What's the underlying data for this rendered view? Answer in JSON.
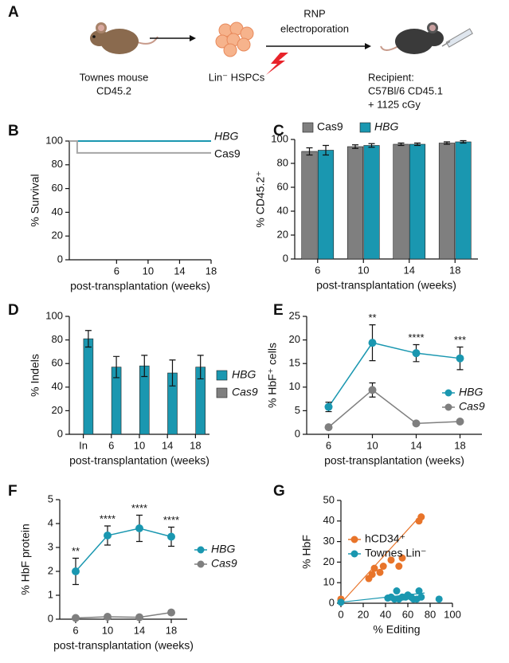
{
  "diagram": {
    "panel": "A",
    "donor": [
      "Townes mouse",
      "CD45.2"
    ],
    "cells": "Lin⁻ HSPCs",
    "step": [
      "RNP",
      "electroporation"
    ],
    "recipient": [
      "Recipient:",
      "C57Bl/6 CD45.1",
      "+ 1125 cGy"
    ]
  },
  "chart_data": [
    {
      "panel": "B",
      "type": "line",
      "step": true,
      "ylabel": "% Survival",
      "xlabel": "post-transplantation (weeks)",
      "x": [
        0,
        1,
        18
      ],
      "xlim": [
        0,
        18
      ],
      "xticks": [
        6,
        10,
        14,
        18
      ],
      "ylim": [
        0,
        100
      ],
      "yticks": [
        0,
        20,
        40,
        60,
        80,
        100
      ],
      "legend": "line-end",
      "series": [
        {
          "name": "HBG",
          "italic": true,
          "color": "#1a97b0",
          "values": [
            100,
            100,
            100
          ]
        },
        {
          "name": "Cas9",
          "italic": false,
          "color": "#a6a6a6",
          "values": [
            100,
            90,
            90
          ]
        }
      ]
    },
    {
      "panel": "C",
      "type": "bar",
      "ylabel": "% CD45.2⁺",
      "xlabel": "post-transplantation (weeks)",
      "categories": [
        "6",
        "10",
        "14",
        "18"
      ],
      "ylim": [
        0,
        100
      ],
      "yticks": [
        0,
        20,
        40,
        60,
        80,
        100
      ],
      "legend": "top",
      "series": [
        {
          "name": "Cas9",
          "italic": false,
          "color": "#7f7f7f",
          "values": [
            90,
            94,
            96,
            97
          ],
          "errors": [
            3,
            1.5,
            1,
            1
          ]
        },
        {
          "name": "HBG",
          "italic": true,
          "color": "#1a97b0",
          "values": [
            91,
            95,
            96,
            98
          ],
          "errors": [
            4,
            1.5,
            1,
            1
          ]
        }
      ]
    },
    {
      "panel": "D",
      "type": "bar",
      "ylabel": "% Indels",
      "xlabel": "post-transplantation (weeks)",
      "categories": [
        "In",
        "6",
        "10",
        "14",
        "18"
      ],
      "ylim": [
        0,
        100
      ],
      "yticks": [
        0,
        20,
        40,
        60,
        80,
        100
      ],
      "legend": "right",
      "series": [
        {
          "name": "Cas9",
          "italic": true,
          "color": "#7f7f7f",
          "values": [
            0,
            0,
            0,
            0,
            0
          ],
          "errors": [
            0,
            0,
            0,
            0,
            0
          ]
        },
        {
          "name": "HBG",
          "italic": true,
          "color": "#1a97b0",
          "values": [
            81,
            57,
            58,
            52,
            57
          ],
          "errors": [
            7,
            9,
            9,
            11,
            10
          ]
        }
      ],
      "legend_order": [
        1,
        0
      ]
    },
    {
      "panel": "E",
      "type": "line",
      "ylabel": "% HbF⁺ cells",
      "xlabel": "post-transplantation (weeks)",
      "categories": [
        "6",
        "10",
        "14",
        "18"
      ],
      "ylim": [
        0,
        25
      ],
      "yticks": [
        0,
        5,
        10,
        15,
        20,
        25
      ],
      "legend": "right",
      "annotations": [
        null,
        "**",
        "****",
        "***"
      ],
      "series": [
        {
          "name": "HBG",
          "italic": true,
          "color": "#1a97b0",
          "values": [
            5.8,
            19.4,
            17.2,
            16.1
          ],
          "errors": [
            1,
            3.8,
            1.8,
            2.4
          ]
        },
        {
          "name": "Cas9",
          "italic": true,
          "color": "#7f7f7f",
          "values": [
            1.5,
            9.4,
            2.3,
            2.7
          ],
          "errors": [
            0,
            1.5,
            0,
            0
          ]
        }
      ]
    },
    {
      "panel": "F",
      "type": "line",
      "ylabel": "% HbF protein",
      "xlabel": "post-transplantation (weeks)",
      "categories": [
        "6",
        "10",
        "14",
        "18"
      ],
      "ylim": [
        0,
        5
      ],
      "yticks": [
        0,
        1,
        2,
        3,
        4,
        5
      ],
      "legend": "right",
      "annotations": [
        "**",
        "****",
        "****",
        "****"
      ],
      "series": [
        {
          "name": "HBG",
          "italic": true,
          "color": "#1a97b0",
          "values": [
            2.0,
            3.5,
            3.8,
            3.45
          ],
          "errors": [
            0.55,
            0.4,
            0.55,
            0.4
          ]
        },
        {
          "name": "Cas9",
          "italic": true,
          "color": "#7f7f7f",
          "values": [
            0.05,
            0.1,
            0.08,
            0.28
          ],
          "errors": [
            0,
            0,
            0,
            0
          ]
        }
      ]
    },
    {
      "panel": "G",
      "type": "scatter",
      "ylabel": "% HbF",
      "xlabel": "% Editing",
      "xlim": [
        0,
        100
      ],
      "xticks": [
        0,
        20,
        40,
        60,
        80,
        100
      ],
      "ylim": [
        0,
        50
      ],
      "yticks": [
        0,
        10,
        20,
        30,
        40,
        50
      ],
      "legend": "right",
      "series": [
        {
          "name": "hCD34⁺",
          "color": "#e8742a",
          "x": [
            0,
            0,
            25,
            28,
            30,
            35,
            38,
            45,
            52,
            55,
            70,
            72
          ],
          "values": [
            1.5,
            2,
            12,
            14,
            17,
            15,
            18,
            21,
            18,
            22,
            40,
            42
          ],
          "trend": {
            "x": [
              0,
              72
            ],
            "y": [
              0,
              43
            ]
          }
        },
        {
          "name": "Townes Lin⁻",
          "color": "#1a97b0",
          "x": [
            0,
            42,
            45,
            48,
            50,
            52,
            55,
            58,
            60,
            63,
            65,
            68,
            70,
            72,
            88
          ],
          "values": [
            0.5,
            2.5,
            3,
            2,
            6,
            2,
            3,
            3,
            4,
            3,
            2,
            2,
            6,
            3,
            2
          ],
          "trend": {
            "x": [
              0,
              75
            ],
            "y": [
              0.5,
              5
            ]
          }
        }
      ]
    }
  ]
}
